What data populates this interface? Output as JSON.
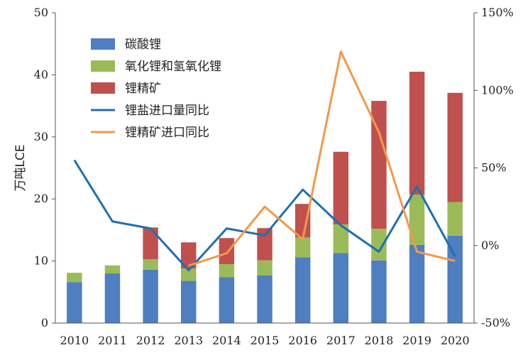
{
  "chart_data": {
    "type": "bar",
    "categories": [
      "2010",
      "2011",
      "2012",
      "2013",
      "2014",
      "2015",
      "2016",
      "2017",
      "2018",
      "2019",
      "2020"
    ],
    "series": [
      {
        "name": "碳酸锂",
        "kind": "stacked-bar",
        "color": "#4F7FC0",
        "values": [
          6.6,
          8.0,
          8.6,
          6.8,
          7.4,
          7.7,
          10.6,
          11.3,
          10.1,
          12.6,
          14.1
        ]
      },
      {
        "name": "氧化锂和氢氧化锂",
        "kind": "stacked-bar",
        "color": "#9BBB59",
        "values": [
          1.5,
          1.3,
          1.7,
          2.0,
          2.1,
          2.4,
          3.2,
          4.6,
          5.1,
          8.1,
          5.4
        ]
      },
      {
        "name": "锂精矿",
        "kind": "stacked-bar",
        "color": "#C0504D",
        "values": [
          0,
          0,
          5.1,
          4.2,
          4.2,
          5.2,
          5.4,
          11.7,
          20.6,
          19.8,
          17.6
        ]
      },
      {
        "name": "锂盐进口量同比",
        "kind": "line",
        "axis": "right",
        "color": "#1F6FB0",
        "values": [
          55,
          15.5,
          11,
          -16,
          11,
          6.5,
          36,
          13,
          -4,
          38,
          -7
        ]
      },
      {
        "name": "锂精矿进口同比",
        "kind": "line",
        "axis": "right",
        "color": "#F2994A",
        "values": [
          null,
          null,
          null,
          -13,
          -5,
          25,
          4,
          125,
          73,
          -4,
          -10
        ]
      }
    ],
    "ylabel": "万吨LCE",
    "ylim": [
      0,
      50
    ],
    "yticks": [
      "0",
      "10",
      "20",
      "30",
      "40",
      "50"
    ],
    "y2lim": [
      -50,
      150
    ],
    "y2ticks": [
      "-50%",
      "0%",
      "50%",
      "100%",
      "150%"
    ],
    "grid": false,
    "legend_position": "top-left"
  }
}
